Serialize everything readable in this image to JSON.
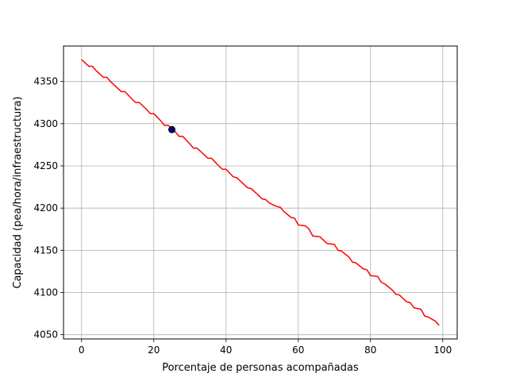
{
  "chart_data": {
    "type": "line",
    "title": "",
    "xlabel": "Porcentaje de personas acompañadas",
    "ylabel": "Capacidad (pea/hora/infraestructura)",
    "xlim": [
      -5,
      104
    ],
    "ylim": [
      4045,
      4392
    ],
    "xticks": [
      0,
      20,
      40,
      60,
      80,
      100
    ],
    "yticks": [
      4050,
      4100,
      4150,
      4200,
      4250,
      4300,
      4350
    ],
    "grid": true,
    "colors": {
      "line": "#ff0000",
      "marker_fill": "#000080",
      "grid": "#b0b0b0"
    },
    "series": [
      {
        "x": [
          0,
          2,
          3,
          4,
          6,
          7,
          8,
          10,
          11,
          12,
          14,
          15,
          16,
          18,
          19,
          20,
          22,
          23,
          24,
          26,
          27,
          28,
          30,
          31,
          32,
          34,
          35,
          36,
          38,
          39,
          40,
          42,
          43,
          44,
          46,
          47,
          48,
          50,
          51,
          52,
          54,
          55,
          56,
          58,
          59,
          60,
          62,
          63,
          64,
          66,
          67,
          68,
          70,
          71,
          72,
          74,
          75,
          76,
          78,
          79,
          80,
          82,
          83,
          84,
          86,
          87,
          88,
          90,
          91,
          92,
          94,
          95,
          96,
          98,
          99
        ],
        "y": [
          4376,
          4368,
          4368,
          4363,
          4355,
          4355,
          4350,
          4342,
          4338,
          4338,
          4329,
          4325,
          4325,
          4317,
          4312,
          4312,
          4303,
          4298,
          4298,
          4290,
          4285,
          4285,
          4276,
          4271,
          4271,
          4263,
          4259,
          4259,
          4250,
          4246,
          4246,
          4237,
          4236,
          4232,
          4224,
          4223,
          4219,
          4211,
          4210,
          4206,
          4202,
          4201,
          4196,
          4189,
          4188,
          4180,
          4179,
          4175,
          4167,
          4166,
          4162,
          4158,
          4157,
          4150,
          4149,
          4142,
          4136,
          4135,
          4128,
          4127,
          4120,
          4119,
          4112,
          4110,
          4103,
          4098,
          4097,
          4089,
          4088,
          4082,
          4080,
          4072,
          4071,
          4066,
          4061
        ]
      }
    ],
    "highlight_point": {
      "x": 25,
      "y": 4293
    }
  }
}
